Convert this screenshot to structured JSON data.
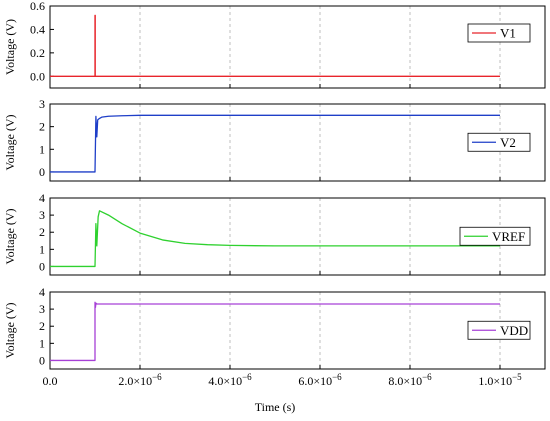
{
  "chart_data": {
    "type": "line",
    "xlabel": "Time (s)",
    "x_ticks": [
      0.0,
      2e-06,
      4e-06,
      6e-06,
      8e-06,
      1e-05
    ],
    "x_tick_labels": [
      {
        "mantissa": "0.0",
        "exp": ""
      },
      {
        "mantissa": "2.0×10",
        "exp": "−6"
      },
      {
        "mantissa": "4.0×10",
        "exp": "−6"
      },
      {
        "mantissa": "6.0×10",
        "exp": "−6"
      },
      {
        "mantissa": "8.0×10",
        "exp": "−6"
      },
      {
        "mantissa": "1.0×10",
        "exp": "−5"
      }
    ],
    "xlim": [
      0,
      1.1e-05
    ],
    "grid": "vertical dashed",
    "panels": [
      {
        "ylabel": "Voltage (V)",
        "ylim": [
          -0.1,
          0.6
        ],
        "y_ticks": [
          0.0,
          0.2,
          0.4,
          0.6
        ],
        "y_tick_labels": [
          "0.0",
          "0.2",
          "0.4",
          "0.6"
        ],
        "legend": "top-right",
        "series": [
          {
            "name": "V1",
            "color": "#e8252b",
            "x": [
              0,
              1e-06,
              1e-06,
              1.005e-06,
              1.005e-06,
              1.03e-06,
              1.1e-06,
              1e-05
            ],
            "y": [
              0,
              0,
              0.52,
              0.52,
              0.0,
              0.0,
              0,
              0
            ]
          }
        ]
      },
      {
        "ylabel": "Voltage (V)",
        "ylim": [
          -0.4,
          3.0
        ],
        "y_ticks": [
          0,
          1,
          2,
          3
        ],
        "y_tick_labels": [
          "0",
          "1",
          "2",
          "3"
        ],
        "legend": "right",
        "series": [
          {
            "name": "V2",
            "color": "#1f3fc8",
            "x": [
              0,
              1e-06,
              1.02e-06,
              1.04e-06,
              1.06e-06,
              1.09e-06,
              1.15e-06,
              1.3e-06,
              1.6e-06,
              2e-06,
              3e-06,
              1e-05
            ],
            "y": [
              0,
              0,
              2.45,
              1.55,
              2.3,
              2.35,
              2.42,
              2.46,
              2.48,
              2.5,
              2.5,
              2.5
            ]
          }
        ]
      },
      {
        "ylabel": "Voltage (V)",
        "ylim": [
          -0.5,
          4.0
        ],
        "y_ticks": [
          0,
          1,
          2,
          3,
          4
        ],
        "y_tick_labels": [
          "0",
          "1",
          "2",
          "3",
          "4"
        ],
        "legend": "right",
        "series": [
          {
            "name": "VREF",
            "color": "#2fd12f",
            "x": [
              0,
              1e-06,
              1.02e-06,
              1.04e-06,
              1.07e-06,
              1.1e-06,
              1.3e-06,
              1.6e-06,
              2e-06,
              2.5e-06,
              3e-06,
              3.5e-06,
              4e-06,
              5e-06,
              6e-06,
              8e-06,
              1e-05
            ],
            "y": [
              0,
              0,
              2.5,
              1.2,
              2.9,
              3.25,
              3.0,
              2.5,
              1.95,
              1.55,
              1.35,
              1.27,
              1.23,
              1.2,
              1.2,
              1.2,
              1.2
            ]
          }
        ]
      },
      {
        "ylabel": "Voltage (V)",
        "ylim": [
          -0.5,
          4.0
        ],
        "y_ticks": [
          0,
          1,
          2,
          3,
          4
        ],
        "y_tick_labels": [
          "0",
          "1",
          "2",
          "3",
          "4"
        ],
        "legend": "right",
        "series": [
          {
            "name": "VDD",
            "color": "#a640d6",
            "x": [
              0,
              1e-06,
              1e-06,
              1.01e-06,
              1.02e-06,
              1.04e-06,
              1.1e-06,
              1e-05
            ],
            "y": [
              0,
              0,
              3.4,
              3.1,
              3.35,
              3.3,
              3.3,
              3.3
            ]
          }
        ]
      }
    ]
  }
}
